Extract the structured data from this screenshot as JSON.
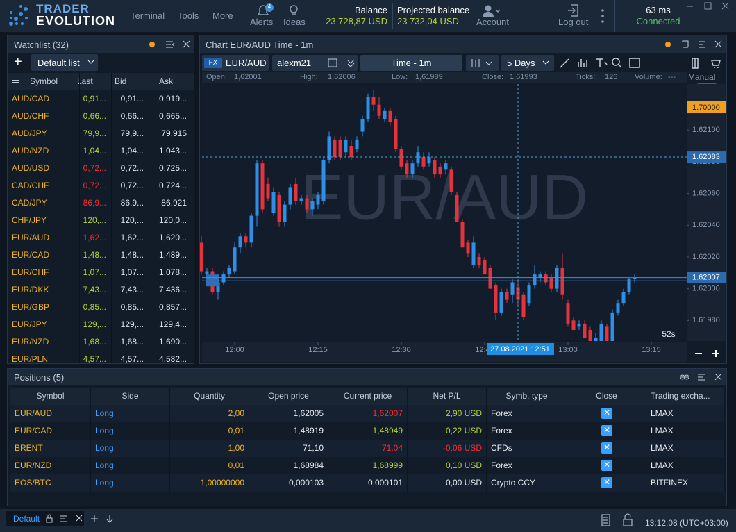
{
  "header": {
    "logo_top": "TRADER",
    "logo_bottom": "EVOLUTION",
    "menu": [
      "Terminal",
      "Tools",
      "More"
    ],
    "alerts": "Alerts",
    "alerts_badge": "4",
    "ideas": "Ideas",
    "balance_label": "Balance",
    "balance_value": "23 728,87 USD",
    "projected_label": "Projected balance",
    "projected_value": "23 732,04 USD",
    "account": "Account",
    "logout": "Log out",
    "latency": "63 ms",
    "status": "Connected"
  },
  "watchlist": {
    "title": "Watchlist (32)",
    "list": "Default list",
    "columns": [
      "Symbol",
      "Last",
      "Bid",
      "Ask"
    ],
    "rows": [
      {
        "symbol": "AUD/CAD",
        "last": "0,91...",
        "bid": "0,91...",
        "ask": "0,919...",
        "last_color": "#b5d334"
      },
      {
        "symbol": "AUD/CHF",
        "last": "0,66...",
        "bid": "0,66...",
        "ask": "0,665...",
        "last_color": "#b5d334"
      },
      {
        "symbol": "AUD/JPY",
        "last": "79,9...",
        "bid": "79,9...",
        "ask": "79,915",
        "last_color": "#b5d334"
      },
      {
        "symbol": "AUD/NZD",
        "last": "1,04...",
        "bid": "1,04...",
        "ask": "1,043...",
        "last_color": "#b5d334"
      },
      {
        "symbol": "AUD/USD",
        "last": "0,72...",
        "bid": "0,72...",
        "ask": "0,725...",
        "last_color": "#ff2b2b"
      },
      {
        "symbol": "CAD/CHF",
        "last": "0,72...",
        "bid": "0,72...",
        "ask": "0,724...",
        "last_color": "#ff2b2b"
      },
      {
        "symbol": "CAD/JPY",
        "last": "86,9...",
        "bid": "86,9...",
        "ask": "86,921",
        "last_color": "#ff2b2b"
      },
      {
        "symbol": "CHF/JPY",
        "last": "120,...",
        "bid": "120,...",
        "ask": "120,0...",
        "last_color": "#b5d334"
      },
      {
        "symbol": "EUR/AUD",
        "last": "1,62...",
        "bid": "1,62...",
        "ask": "1,620...",
        "last_color": "#ff2b2b"
      },
      {
        "symbol": "EUR/CAD",
        "last": "1,48...",
        "bid": "1,48...",
        "ask": "1,489...",
        "last_color": "#b5d334"
      },
      {
        "symbol": "EUR/CHF",
        "last": "1,07...",
        "bid": "1,07...",
        "ask": "1,078...",
        "last_color": "#b5d334"
      },
      {
        "symbol": "EUR/DKK",
        "last": "7,43...",
        "bid": "7,43...",
        "ask": "7,436...",
        "last_color": "#b5d334"
      },
      {
        "symbol": "EUR/GBP",
        "last": "0,85...",
        "bid": "0,85...",
        "ask": "0,857...",
        "last_color": "#b5d334"
      },
      {
        "symbol": "EUR/JPY",
        "last": "129,...",
        "bid": "129,...",
        "ask": "129,4...",
        "last_color": "#b5d334"
      },
      {
        "symbol": "EUR/NZD",
        "last": "1,68...",
        "bid": "1,68...",
        "ask": "1,690...",
        "last_color": "#b5d334"
      },
      {
        "symbol": "EUR/PLN",
        "last": "4,57...",
        "bid": "4,57...",
        "ask": "4,582...",
        "last_color": "#b5d334"
      }
    ]
  },
  "chart_panel": {
    "title": "Chart EUR/AUD Time - 1m",
    "fx": "FX",
    "symbol": "EUR/AUD",
    "account": "alexm21",
    "timeframe": "Time - 1m",
    "range": "5 Days",
    "manual": "Manual",
    "info": [
      {
        "label": "Open:",
        "value": "1,62001"
      },
      {
        "label": "High:",
        "value": "1,62006"
      },
      {
        "label": "Low:",
        "value": "1,61989"
      },
      {
        "label": "Close:",
        "value": "1,61993"
      },
      {
        "label": "Ticks:",
        "value": "126"
      },
      {
        "label": "Volume:",
        "value": "---"
      }
    ]
  },
  "chart_data": {
    "type": "candlestick",
    "watermark": "EUR/AUD",
    "countdown": "52s",
    "up_color": "#2f8fe6",
    "down_color": "#e3333d",
    "ylim": [
      1.61967,
      1.62129
    ],
    "yticks": [
      {
        "value": 1.621,
        "label": "1.62100"
      },
      {
        "value": 1.6208,
        "label": "1.62080"
      },
      {
        "value": 1.6206,
        "label": "1.62060"
      },
      {
        "value": 1.6204,
        "label": "1.62040"
      },
      {
        "value": 1.6202,
        "label": "1.62020"
      },
      {
        "value": 1.62,
        "label": "1.62000"
      },
      {
        "value": 1.6198,
        "label": "1.61980"
      }
    ],
    "xlim": [
      0.125,
      87.375
    ],
    "xticks": [
      {
        "value": 6,
        "label": "12:00"
      },
      {
        "value": 21,
        "label": "12:15"
      },
      {
        "value": 36,
        "label": "12:30"
      },
      {
        "value": 51,
        "label": "12:45"
      },
      {
        "value": 66,
        "label": "13:00"
      },
      {
        "value": 81,
        "label": "13:15"
      }
    ],
    "order_label": "1.70000",
    "crosshair": {
      "x": 57,
      "x_label": "27.08.2021 12:51",
      "y": 1.62083,
      "y_label": "1.62083"
    },
    "current_price": {
      "value": 1.62007,
      "label": "1.62007"
    },
    "position_price": 1.62005,
    "open": [
      1.62029,
      1.62009,
      1.62011,
      1.61998,
      1.62004,
      1.62009,
      1.62011,
      1.62026,
      1.62033,
      1.62029,
      1.62046,
      1.62079,
      1.62066,
      1.62048,
      1.62059,
      1.62042,
      1.62053,
      1.62066,
      1.62055,
      1.62057,
      1.6205,
      1.62053,
      1.62055,
      1.62081,
      1.62094,
      1.62094,
      1.62086,
      1.6209,
      1.62088,
      1.62099,
      1.62107,
      1.62121,
      1.62116,
      1.62107,
      1.62112,
      1.62107,
      1.62088,
      1.62079,
      1.62072,
      1.62079,
      1.62083,
      1.62079,
      1.62081,
      1.62077,
      1.62075,
      1.62075,
      1.62059,
      1.62042,
      1.62029,
      1.62015,
      1.6202,
      1.62018,
      1.62013,
      1.62002,
      1.61985,
      1.61998,
      1.61996,
      1.62001,
      1.61996,
      1.61991,
      1.62002,
      1.62007,
      1.62009,
      1.62007,
      1.62,
      1.62013,
      1.61991,
      1.6198,
      1.61976,
      1.61978,
      1.61974,
      1.61967,
      1.61967,
      1.61976,
      1.61967,
      1.61985,
      1.61991,
      1.61998,
      1.62006
    ],
    "high": [
      1.62033,
      1.62013,
      1.62013,
      1.62007,
      1.62011,
      1.62015,
      1.62029,
      1.62035,
      1.62035,
      1.62048,
      1.62081,
      1.62081,
      1.6207,
      1.62064,
      1.62061,
      1.62055,
      1.62066,
      1.6207,
      1.62059,
      1.62059,
      1.62057,
      1.62061,
      1.62083,
      1.62099,
      1.62096,
      1.62096,
      1.62096,
      1.62094,
      1.62096,
      1.62109,
      1.62123,
      1.62125,
      1.62121,
      1.62114,
      1.62114,
      1.62109,
      1.6209,
      1.62081,
      1.62081,
      1.6209,
      1.62086,
      1.62086,
      1.62083,
      1.62079,
      1.62081,
      1.62077,
      1.62061,
      1.62044,
      1.62031,
      1.62033,
      1.62022,
      1.6202,
      1.62015,
      1.62004,
      1.62,
      1.62,
      1.62006,
      1.62006,
      1.61998,
      1.62004,
      1.62015,
      1.62011,
      1.62011,
      1.62009,
      1.62015,
      1.62022,
      1.61993,
      1.61982,
      1.6198,
      1.6198,
      1.61976,
      1.61972,
      1.6198,
      1.61978,
      1.61987,
      1.61993,
      1.62,
      1.62007,
      1.62009
    ],
    "low": [
      1.62009,
      1.62002,
      1.61996,
      1.61993,
      1.62002,
      1.62007,
      1.62009,
      1.62022,
      1.62026,
      1.62026,
      1.62039,
      1.62048,
      1.62055,
      1.62046,
      1.62039,
      1.62039,
      1.6205,
      1.62053,
      1.62053,
      1.62048,
      1.62046,
      1.6205,
      1.62053,
      1.62079,
      1.62081,
      1.62081,
      1.62083,
      1.62081,
      1.62086,
      1.62096,
      1.62105,
      1.62112,
      1.62107,
      1.62105,
      1.62103,
      1.62086,
      1.62075,
      1.6207,
      1.6207,
      1.62077,
      1.62075,
      1.62077,
      1.6207,
      1.6207,
      1.62072,
      1.62059,
      1.62042,
      1.62026,
      1.6202,
      1.62013,
      1.62013,
      1.62009,
      1.62,
      1.6198,
      1.61983,
      1.61991,
      1.61991,
      1.61989,
      1.6198,
      1.61989,
      1.62,
      1.62004,
      1.62002,
      1.61998,
      1.61998,
      1.61993,
      1.61976,
      1.61974,
      1.61974,
      1.61969,
      1.61967,
      1.61967,
      1.61967,
      1.61967,
      1.61967,
      1.61983,
      1.61989,
      1.61996,
      1.62004
    ],
    "close": [
      1.62011,
      1.62011,
      1.61998,
      1.62004,
      1.62009,
      1.62013,
      1.62026,
      1.62033,
      1.62029,
      1.62046,
      1.62079,
      1.6205,
      1.62057,
      1.62061,
      1.62042,
      1.62053,
      1.62064,
      1.62055,
      1.62057,
      1.6205,
      1.62055,
      1.62059,
      1.62081,
      1.62096,
      1.62083,
      1.62083,
      1.62094,
      1.62083,
      1.62094,
      1.62107,
      1.62121,
      1.62116,
      1.62109,
      1.62112,
      1.62105,
      1.62088,
      1.62077,
      1.62072,
      1.62079,
      1.62086,
      1.62077,
      1.62083,
      1.62072,
      1.62072,
      1.62079,
      1.62061,
      1.62042,
      1.62026,
      1.62022,
      1.62029,
      1.62015,
      1.62009,
      1.62,
      1.61985,
      1.61998,
      1.61993,
      1.62004,
      1.61993,
      1.61982,
      1.62002,
      1.62009,
      1.62009,
      1.62004,
      1.62,
      1.62013,
      1.61996,
      1.61978,
      1.61974,
      1.61978,
      1.61969,
      1.61967,
      1.61969,
      1.61978,
      1.61967,
      1.61985,
      1.61991,
      1.61998,
      1.62006,
      1.62007
    ]
  },
  "positions": {
    "title": "Positions (5)",
    "columns": [
      "Symbol",
      "Side",
      "Quantity",
      "Open price",
      "Current price",
      "Net P/L",
      "Symb. type",
      "Close",
      "Trading excha..."
    ],
    "rows": [
      {
        "symbol": "EUR/AUD",
        "side": "Long",
        "quantity": "2,00",
        "open": "1,62005",
        "current": "1,62007",
        "pnl": "2,90 USD",
        "type": "Forex",
        "exchange": "LMAX",
        "current_color": "#ff2b2b",
        "pnl_color": "#b5d334"
      },
      {
        "symbol": "EUR/CAD",
        "side": "Long",
        "quantity": "0,01",
        "open": "1,48919",
        "current": "1,48949",
        "pnl": "0,22 USD",
        "type": "Forex",
        "exchange": "LMAX",
        "current_color": "#b5d334",
        "pnl_color": "#b5d334"
      },
      {
        "symbol": "BRENT",
        "side": "Long",
        "quantity": "1,00",
        "open": "71,10",
        "current": "71,04",
        "pnl": "-0,06 USD",
        "type": "CFDs",
        "exchange": "LMAX",
        "current_color": "#ff2b2b",
        "pnl_color": "#ff2b2b"
      },
      {
        "symbol": "EUR/NZD",
        "side": "Long",
        "quantity": "0,01",
        "open": "1,68984",
        "current": "1,68999",
        "pnl": "0,10 USD",
        "type": "Forex",
        "exchange": "LMAX",
        "current_color": "#b5d334",
        "pnl_color": "#b5d334"
      },
      {
        "symbol": "EOS/BTC",
        "side": "Long",
        "quantity": "1,00000000",
        "open": "0,000103",
        "current": "0,000101",
        "pnl": "0,00 USD",
        "type": "Crypto CCY",
        "exchange": "BITFINEX",
        "current_color": "#e6ebf0",
        "pnl_color": "#e6ebf0"
      }
    ]
  },
  "footer": {
    "tab": "Default",
    "clock": "13:12:08 (UTC+03:00)"
  }
}
